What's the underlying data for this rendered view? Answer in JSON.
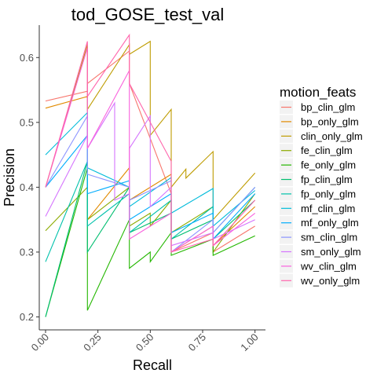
{
  "chart_data": {
    "type": "line",
    "title": "tod_GOSE_test_val",
    "xlabel": "Recall",
    "ylabel": "Precision",
    "xlim": [
      -0.03,
      1.05
    ],
    "ylim": [
      0.18,
      0.65
    ],
    "x_ticks": [
      0.0,
      0.25,
      0.5,
      0.75,
      1.0
    ],
    "x_tick_labels": [
      "0.00",
      "0.25",
      "0.50",
      "0.75",
      "1.00"
    ],
    "y_ticks": [
      0.2,
      0.3,
      0.4,
      0.5,
      0.6
    ],
    "y_tick_labels": [
      "0.2",
      "0.3",
      "0.4",
      "0.5",
      "0.6"
    ],
    "grid": false,
    "legend": {
      "title": "motion_feats",
      "placement": "right"
    },
    "series": [
      {
        "name": "bp_clin_glm",
        "color": "#F8766D",
        "x": [
          0,
          0.2,
          0.2,
          0.4,
          0.4,
          0.6,
          0.6,
          0.8,
          0.8,
          1.0
        ],
        "y": [
          0.533,
          0.548,
          0.56,
          0.61,
          0.56,
          0.39,
          0.3,
          0.33,
          0.3,
          0.34
        ]
      },
      {
        "name": "bp_only_glm",
        "color": "#E18A00",
        "x": [
          0,
          0.2,
          0.2,
          0.4,
          0.4,
          0.6,
          0.6,
          0.8,
          0.8,
          1.0
        ],
        "y": [
          0.522,
          0.54,
          0.35,
          0.43,
          0.38,
          0.42,
          0.3,
          0.34,
          0.31,
          0.37
        ]
      },
      {
        "name": "clin_only_glm",
        "color": "#BE9C00",
        "x": [
          0,
          0.2,
          0.2,
          0.4,
          0.4,
          0.5,
          0.5,
          0.6,
          0.6,
          0.67,
          0.67,
          0.8,
          0.8,
          1.0
        ],
        "y": [
          0.4,
          0.62,
          0.52,
          0.62,
          0.605,
          0.625,
          0.48,
          0.52,
          0.4,
          0.428,
          0.414,
          0.455,
          0.35,
          0.422
        ]
      },
      {
        "name": "fe_clin_glm",
        "color": "#8CAB00",
        "x": [
          0,
          0.2,
          0.2,
          0.4,
          0.4,
          0.5,
          0.5,
          0.6,
          0.6,
          0.8,
          0.8,
          1.0
        ],
        "y": [
          0.333,
          0.4,
          0.35,
          0.4,
          0.34,
          0.36,
          0.34,
          0.38,
          0.33,
          0.37,
          0.3,
          0.39
        ]
      },
      {
        "name": "fe_only_glm",
        "color": "#24B700",
        "x": [
          0,
          0.2,
          0.2,
          0.4,
          0.4,
          0.5,
          0.5,
          0.6,
          0.6,
          0.8,
          0.8,
          1.0
        ],
        "y": [
          0.2,
          0.43,
          0.21,
          0.35,
          0.275,
          0.3,
          0.285,
          0.33,
          0.295,
          0.32,
          0.295,
          0.325
        ]
      },
      {
        "name": "fp_clin_glm",
        "color": "#00BE70",
        "x": [
          0,
          0.2,
          0.2,
          0.4,
          0.4,
          0.6,
          0.6,
          0.8,
          0.8,
          1.0
        ],
        "y": [
          0.2,
          0.44,
          0.3,
          0.4,
          0.33,
          0.36,
          0.32,
          0.35,
          0.32,
          0.38
        ]
      },
      {
        "name": "fp_only_glm",
        "color": "#00C1AB",
        "x": [
          0,
          0.2,
          0.2,
          0.4,
          0.4,
          0.6,
          0.6,
          0.8,
          0.8,
          1.0
        ],
        "y": [
          0.285,
          0.44,
          0.34,
          0.39,
          0.33,
          0.38,
          0.32,
          0.37,
          0.33,
          0.4
        ]
      },
      {
        "name": "mf_clin_glm",
        "color": "#00BBDA",
        "x": [
          0,
          0.2,
          0.2,
          0.4,
          0.4,
          0.6,
          0.6,
          0.8,
          0.8,
          1.0
        ],
        "y": [
          0.45,
          0.515,
          0.43,
          0.4,
          0.37,
          0.415,
          0.36,
          0.398,
          0.34,
          0.395
        ]
      },
      {
        "name": "mf_only_glm",
        "color": "#00ACFC",
        "x": [
          0,
          0.2,
          0.2,
          0.4,
          0.4,
          0.6,
          0.6,
          0.8,
          0.8,
          1.0
        ],
        "y": [
          0.4,
          0.48,
          0.39,
          0.41,
          0.35,
          0.39,
          0.33,
          0.36,
          0.32,
          0.39
        ]
      },
      {
        "name": "sm_clin_glm",
        "color": "#8B93FF",
        "x": [
          0,
          0.2,
          0.2,
          0.4,
          0.4,
          0.6,
          0.6,
          0.8,
          0.8,
          1.0
        ],
        "y": [
          0.4,
          0.51,
          0.42,
          0.4,
          0.38,
          0.41,
          0.3,
          0.35,
          0.33,
          0.4
        ]
      },
      {
        "name": "sm_only_glm",
        "color": "#D575FE",
        "x": [
          0,
          0.2,
          0.2,
          0.33,
          0.33,
          0.4,
          0.4,
          0.5,
          0.5,
          0.6,
          0.6,
          0.8,
          0.8,
          1.0
        ],
        "y": [
          0.355,
          0.48,
          0.46,
          0.53,
          0.38,
          0.39,
          0.46,
          0.51,
          0.37,
          0.4,
          0.31,
          0.33,
          0.32,
          0.35
        ]
      },
      {
        "name": "wv_clin_glm",
        "color": "#F962DD",
        "x": [
          0,
          0.2,
          0.2,
          0.4,
          0.4,
          0.6,
          0.6,
          0.8,
          0.8,
          1.0
        ],
        "y": [
          0.4,
          0.615,
          0.46,
          0.58,
          0.32,
          0.36,
          0.3,
          0.34,
          0.31,
          0.36
        ]
      },
      {
        "name": "wv_only_glm",
        "color": "#FF65AC",
        "x": [
          0,
          0.2,
          0.2,
          0.4,
          0.4,
          0.6,
          0.6,
          0.8,
          0.8,
          1.0
        ],
        "y": [
          0.4,
          0.625,
          0.54,
          0.635,
          0.56,
          0.44,
          0.3,
          0.32,
          0.31,
          0.38
        ]
      }
    ]
  }
}
